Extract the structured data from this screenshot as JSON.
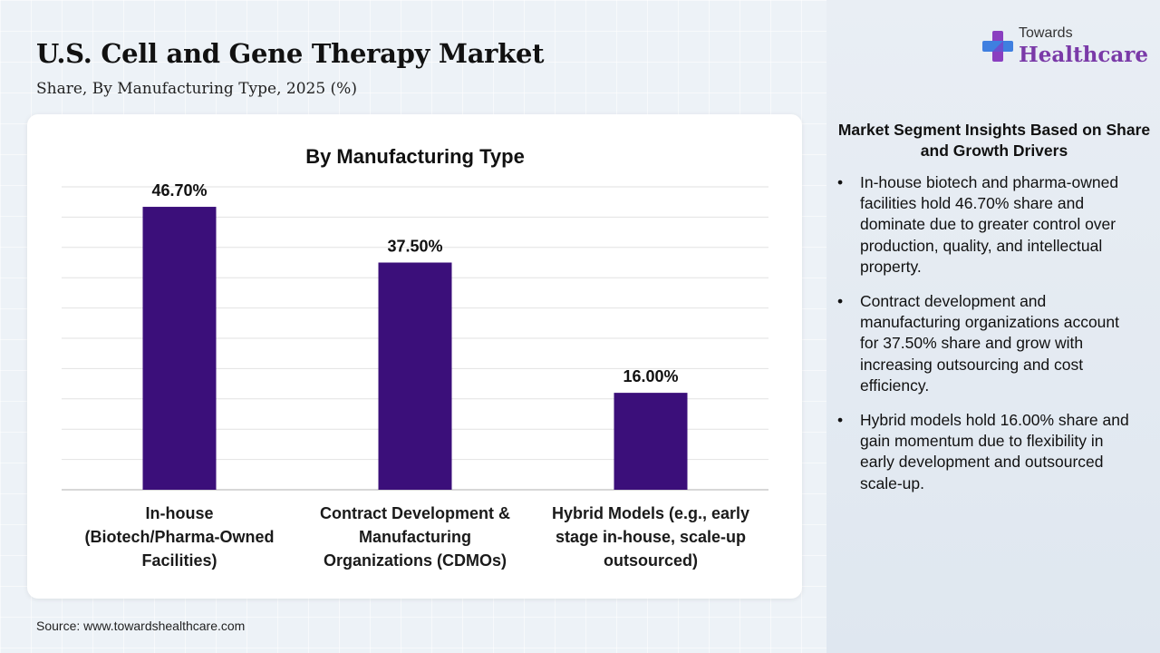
{
  "header": {
    "title": "U.S. Cell and Gene Therapy Market",
    "subtitle": "Share, By Manufacturing Type, 2025 (%)"
  },
  "logo": {
    "top_text": "Towards",
    "bottom_text": "Healthcare",
    "icon": "plus-cross-icon",
    "colors": {
      "text": "#7a3aa8",
      "icon_blue": "#3f7fe0",
      "icon_purple": "#8a3fc0"
    }
  },
  "chart_data": {
    "type": "bar",
    "title": "By Manufacturing Type",
    "categories": [
      [
        "In-house",
        "(Biotech/Pharma-Owned",
        "Facilities)"
      ],
      [
        "Contract Development &",
        "Manufacturing",
        "Organizations (CDMOs)"
      ],
      [
        "Hybrid Models (e.g., early",
        "stage in-house, scale-up",
        "outsourced)"
      ]
    ],
    "values": [
      46.7,
      37.5,
      16.0
    ],
    "value_labels": [
      "46.70%",
      "37.50%",
      "16.00%"
    ],
    "ylim": [
      0,
      50
    ],
    "grid": true,
    "legend": "none",
    "bar_color": "#3b0f7a"
  },
  "insights": {
    "title": "Market Segment Insights Based on Share and Growth Drivers",
    "bullet": "•",
    "items": [
      "In-house biotech and pharma-owned facilities hold 46.70% share and dominate due to greater control over production, quality, and intellectual property.",
      "Contract development and manufacturing organizations account for 37.50% share and grow with increasing outsourcing and cost efficiency.",
      "Hybrid models hold 16.00% share and gain momentum due to flexibility in early development and outsourced scale-up."
    ]
  },
  "footer": {
    "source": "Source: www.towardshealthcare.com"
  }
}
